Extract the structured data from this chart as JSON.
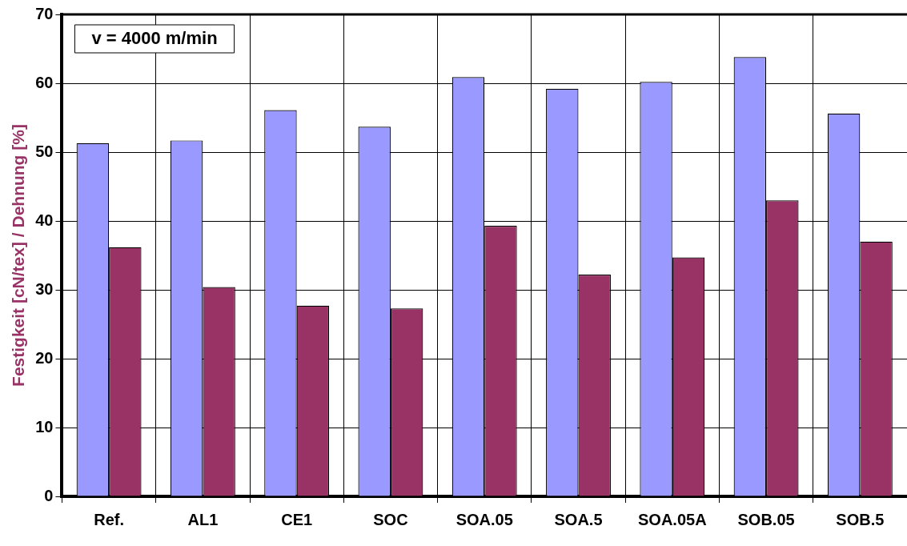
{
  "chart_data": {
    "type": "bar",
    "ylabel": "Festigkeit [cN/tex] / Dehnung [%]",
    "categories": [
      "Ref.",
      "AL1",
      "CE1",
      "SOC",
      "SOA.05",
      "SOA.5",
      "SOA.05A",
      "SOB.05",
      "SOB.5"
    ],
    "series": [
      {
        "color": "#9999ff",
        "values": [
          51.3,
          51.7,
          56.1,
          53.7,
          60.9,
          59.2,
          60.2,
          63.8,
          55.6
        ]
      },
      {
        "color": "#993366",
        "values": [
          36.2,
          30.4,
          27.7,
          27.3,
          39.3,
          32.2,
          34.7,
          43.0,
          37.0
        ]
      }
    ],
    "ylim": [
      0,
      70
    ],
    "yticks": [
      0,
      10,
      20,
      30,
      40,
      50,
      60,
      70
    ],
    "grid": true,
    "annotations": [
      "v = 4000 m/min"
    ]
  }
}
